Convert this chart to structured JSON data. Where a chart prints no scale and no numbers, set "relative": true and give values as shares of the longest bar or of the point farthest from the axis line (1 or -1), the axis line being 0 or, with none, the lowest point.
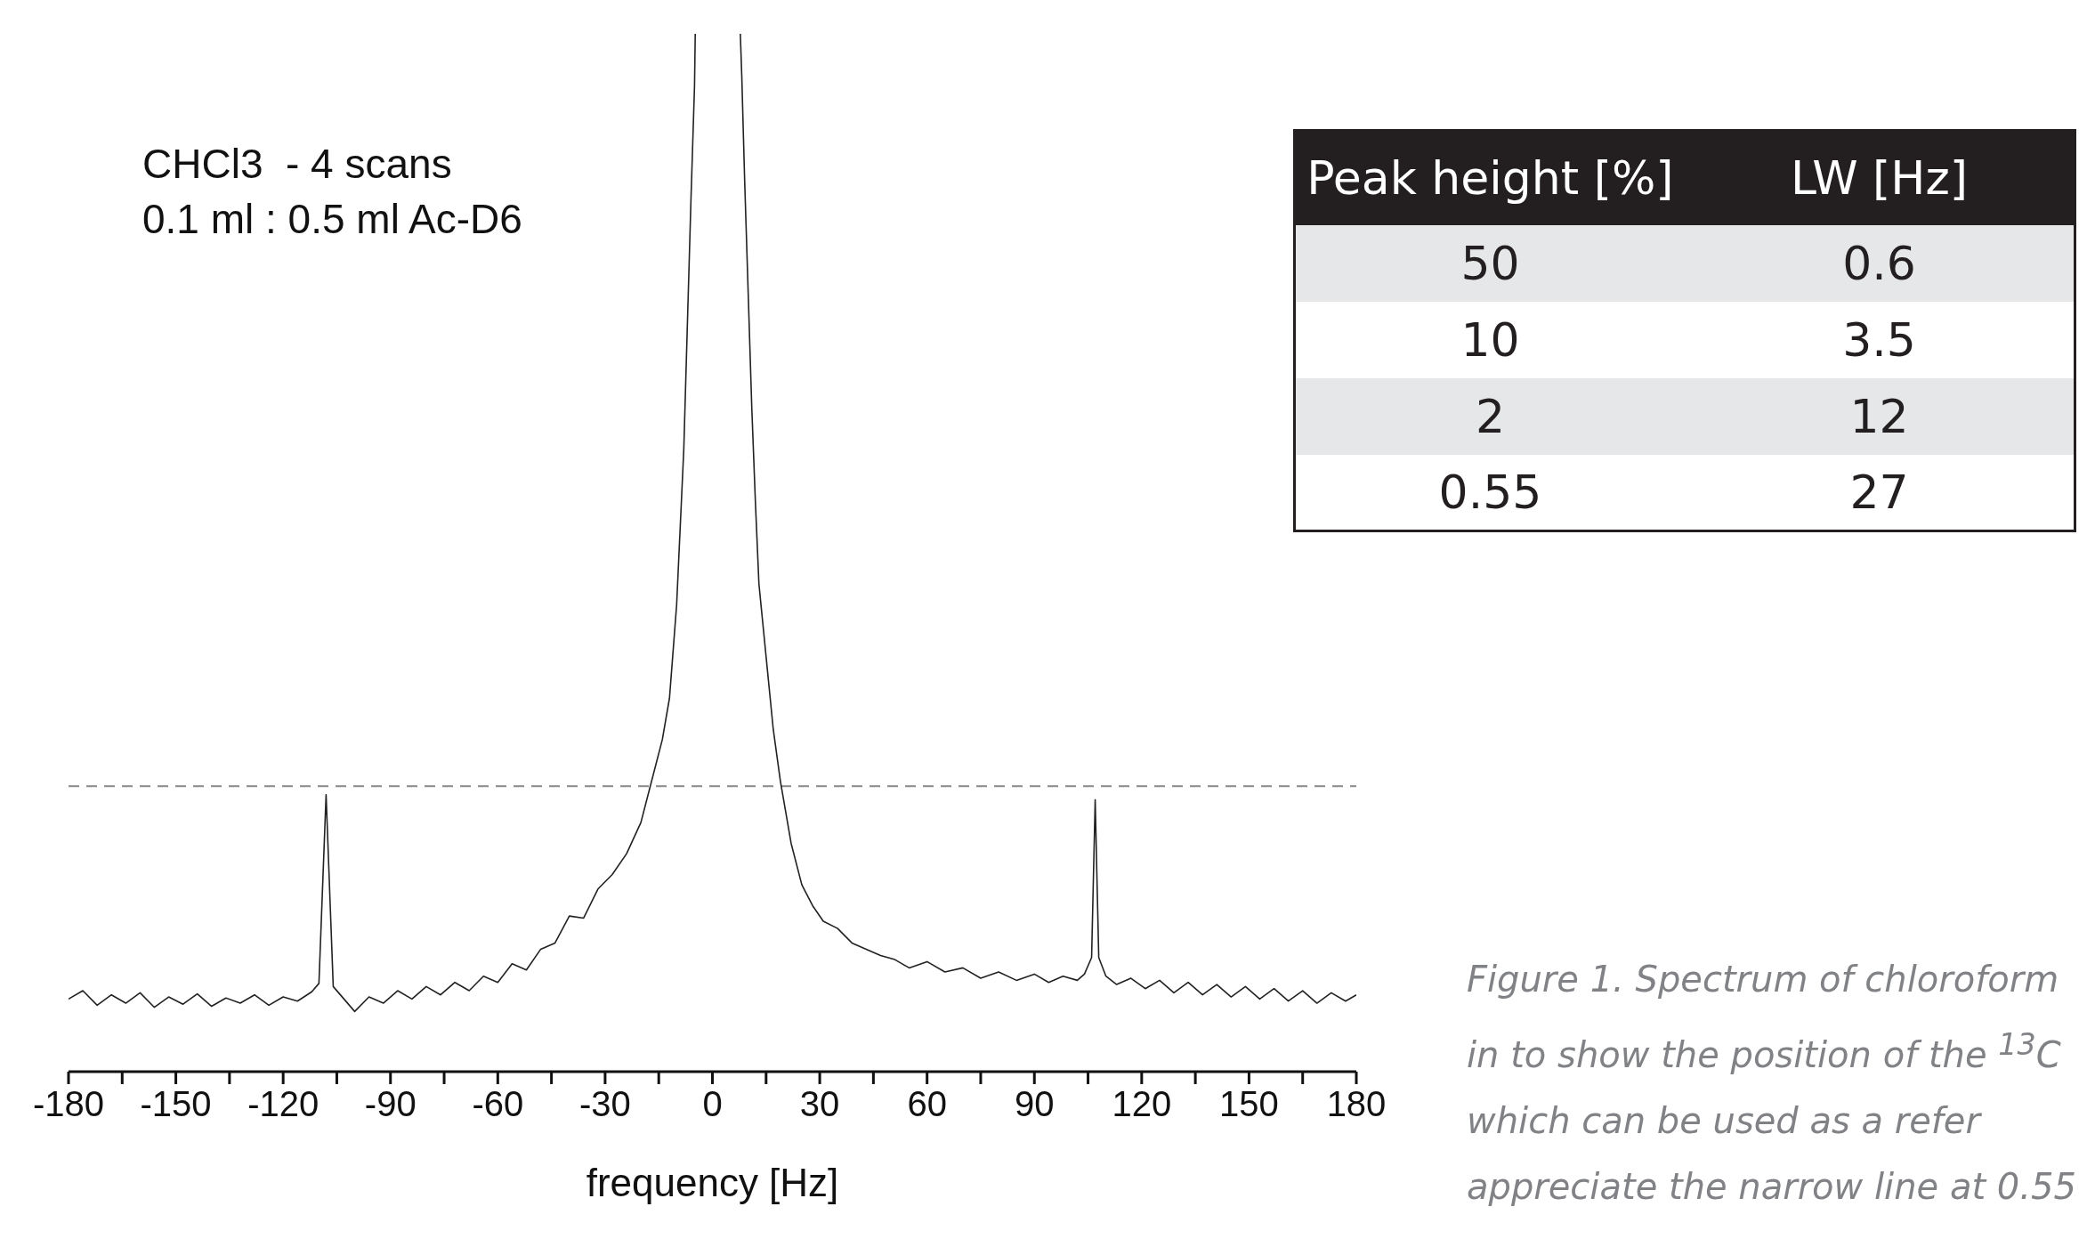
{
  "chart_data": {
    "type": "line",
    "relative": true,
    "xlabel": "frequency [Hz]",
    "xlim": [
      -180,
      180
    ],
    "xticks": [
      -180,
      {
        "value": -165,
        "label": null
      },
      -150,
      {
        "value": -135,
        "label": null
      },
      -120,
      {
        "value": -105,
        "label": null
      },
      -90,
      {
        "value": -75,
        "label": null
      },
      -60,
      {
        "value": -45,
        "label": null
      },
      -30,
      {
        "value": -15,
        "label": null
      },
      0,
      {
        "value": 15,
        "label": null
      },
      30,
      {
        "value": 45,
        "label": null
      },
      60,
      {
        "value": 75,
        "label": null
      },
      90,
      {
        "value": 105,
        "label": null
      },
      120,
      {
        "value": 135,
        "label": null
      },
      150,
      {
        "value": 165,
        "label": null
      },
      180
    ],
    "x": [
      -180,
      -176,
      -172,
      -168,
      -164,
      -160,
      -156,
      -152,
      -148,
      -144,
      -140,
      -136,
      -132,
      -128,
      -124,
      -120,
      -116,
      -112,
      -110,
      -108,
      -106,
      -103,
      -100,
      -96,
      -92,
      -88,
      -84,
      -80,
      -76,
      -72,
      -68,
      -64,
      -60,
      -56,
      -52,
      -48,
      -44,
      -40,
      -36,
      -32,
      -28,
      -24,
      -20,
      -17,
      -14,
      -12,
      -10,
      -8,
      -7,
      -6,
      -5,
      -4.8,
      1.5,
      7.8,
      8.2,
      9,
      10,
      11,
      12,
      13,
      15,
      17,
      19,
      22,
      25,
      28,
      31,
      35,
      39,
      43,
      47,
      51,
      55,
      60,
      65,
      70,
      75,
      80,
      85,
      90,
      94,
      98,
      102,
      104,
      106,
      107,
      108,
      110,
      113,
      117,
      121,
      125,
      129,
      133,
      137,
      141,
      145,
      149,
      153,
      157,
      161,
      165,
      169,
      173,
      177,
      180
    ],
    "series": [
      {
        "color": "#222222",
        "values": [
          0.07,
          0.078,
          0.064,
          0.074,
          0.066,
          0.076,
          0.062,
          0.072,
          0.065,
          0.075,
          0.063,
          0.071,
          0.066,
          0.074,
          0.064,
          0.072,
          0.068,
          0.077,
          0.085,
          0.267,
          0.082,
          0.07,
          0.058,
          0.072,
          0.066,
          0.078,
          0.07,
          0.082,
          0.074,
          0.086,
          0.078,
          0.092,
          0.086,
          0.104,
          0.098,
          0.118,
          0.124,
          0.15,
          0.148,
          0.176,
          0.19,
          0.21,
          0.24,
          0.28,
          0.32,
          0.36,
          0.45,
          0.6,
          0.72,
          0.84,
          0.95,
          1,
          null,
          1,
          0.96,
          0.86,
          0.75,
          0.64,
          0.55,
          0.47,
          0.4,
          0.33,
          0.28,
          0.22,
          0.18,
          0.16,
          0.145,
          0.138,
          0.124,
          0.118,
          0.112,
          0.108,
          0.1,
          0.106,
          0.096,
          0.1,
          0.09,
          0.096,
          0.088,
          0.094,
          0.086,
          0.092,
          0.088,
          0.094,
          0.11,
          0.262,
          0.11,
          0.092,
          0.084,
          0.09,
          0.08,
          0.088,
          0.076,
          0.086,
          0.074,
          0.084,
          0.072,
          0.082,
          0.07,
          0.08,
          0.068,
          0.078,
          0.066,
          0.076,
          0.068,
          0.074
        ]
      }
    ],
    "ref_lines": [
      {
        "axis": "y",
        "value": 0.275,
        "color": "#888888",
        "line_style": "dashed"
      }
    ],
    "grid": false,
    "legend": false,
    "marker": "none",
    "line_style": "solid",
    "annotations": [
      "CHCl3  - 4 scans",
      "0.1 ml : 0.5 ml Ac-D6",
      "Peak height [%]",
      "LW [Hz]",
      "50",
      "0.6",
      "10",
      "3.5",
      "2",
      "12",
      "0.55",
      "27",
      "Figure 1. Spectrum of chloroform",
      "in to show the position of the $^{13}$C",
      "which can be used as a refer",
      "appreciate the narrow line at 0.55"
    ]
  }
}
